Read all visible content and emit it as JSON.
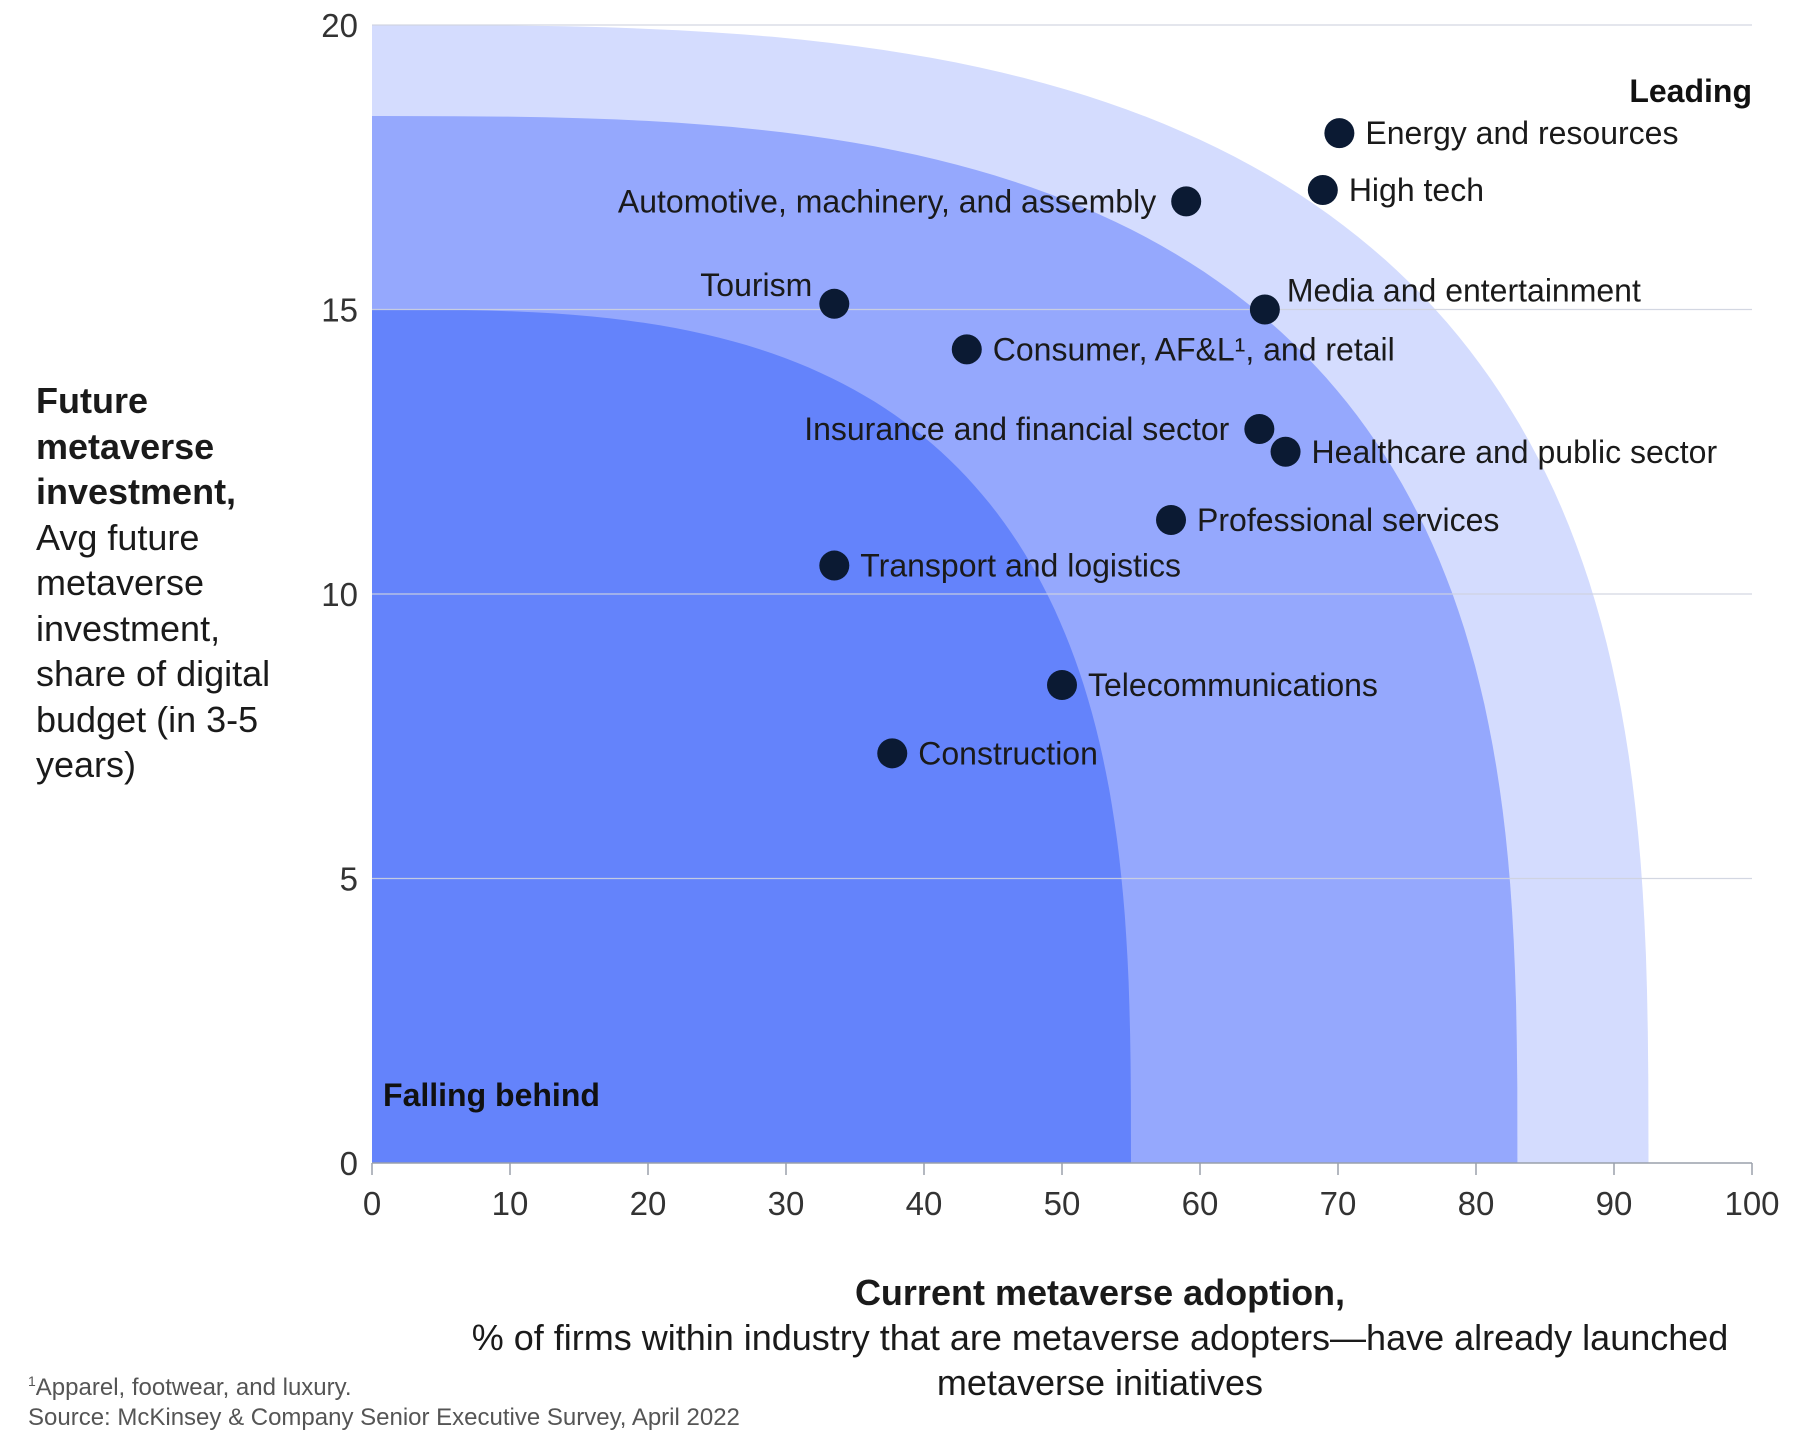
{
  "chart_data": {
    "type": "scatter",
    "xlabel_bold": "Current metaverse adoption,",
    "xlabel": "% of firms within industry that are metaverse adopters—have already launched metaverse initiatives",
    "ylabel_bold": "Future metaverse investment,",
    "ylabel": "Avg future metaverse investment, share of digital budget (in 3-5 years)",
    "xlim": [
      0,
      100
    ],
    "ylim": [
      0,
      20
    ],
    "xticks": [
      "0",
      "10",
      "20",
      "30",
      "40",
      "50",
      "60",
      "70",
      "80",
      "90",
      "100"
    ],
    "yticks": [
      "0",
      "5",
      "10",
      "15",
      "20"
    ],
    "grid": "horizontal",
    "zone_labels": {
      "leading": "Leading",
      "falling_behind": "Falling behind"
    },
    "zones": [
      {
        "name": "Leading",
        "color": "#d4dcfe",
        "x_extent": 92.5,
        "y_extent": 20
      },
      {
        "name": "Middle",
        "color": "#95a8fd",
        "x_extent": 83,
        "y_extent": 18.4
      },
      {
        "name": "Falling behind",
        "color": "#6483fb",
        "x_extent": 55,
        "y_extent": 15
      }
    ],
    "points": [
      {
        "label": "Energy and resources",
        "x": 70.1,
        "y": 18.1,
        "label_side": "right"
      },
      {
        "label": "High tech",
        "x": 68.9,
        "y": 17.1,
        "label_side": "right"
      },
      {
        "label": "Automotive, machinery, and assembly",
        "x": 59.0,
        "y": 16.9,
        "label_side": "left"
      },
      {
        "label": "Tourism",
        "x": 33.5,
        "y": 15.1,
        "label_side": "left-above"
      },
      {
        "label": "Media and entertainment",
        "x": 64.7,
        "y": 15.0,
        "label_side": "right-above"
      },
      {
        "label": "Consumer, AF&L¹, and retail",
        "x": 43.1,
        "y": 14.3,
        "label_side": "right"
      },
      {
        "label": "Insurance and financial sector",
        "x": 64.3,
        "y": 12.9,
        "label_side": "left"
      },
      {
        "label": "Healthcare and public sector",
        "x": 66.2,
        "y": 12.5,
        "label_side": "right"
      },
      {
        "label": "Professional services",
        "x": 57.9,
        "y": 11.3,
        "label_side": "right"
      },
      {
        "label": "Transport and logistics",
        "x": 33.5,
        "y": 10.5,
        "label_side": "right"
      },
      {
        "label": "Telecommunications",
        "x": 50.0,
        "y": 8.4,
        "label_side": "right"
      },
      {
        "label": "Construction",
        "x": 37.7,
        "y": 7.2,
        "label_side": "right"
      }
    ],
    "point_color": "#0b1a33",
    "footnote": "Apparel, footwear, and luxury.",
    "footnote_marker": "1",
    "source": "Source: McKinsey & Company Senior Executive Survey, April 2022"
  }
}
